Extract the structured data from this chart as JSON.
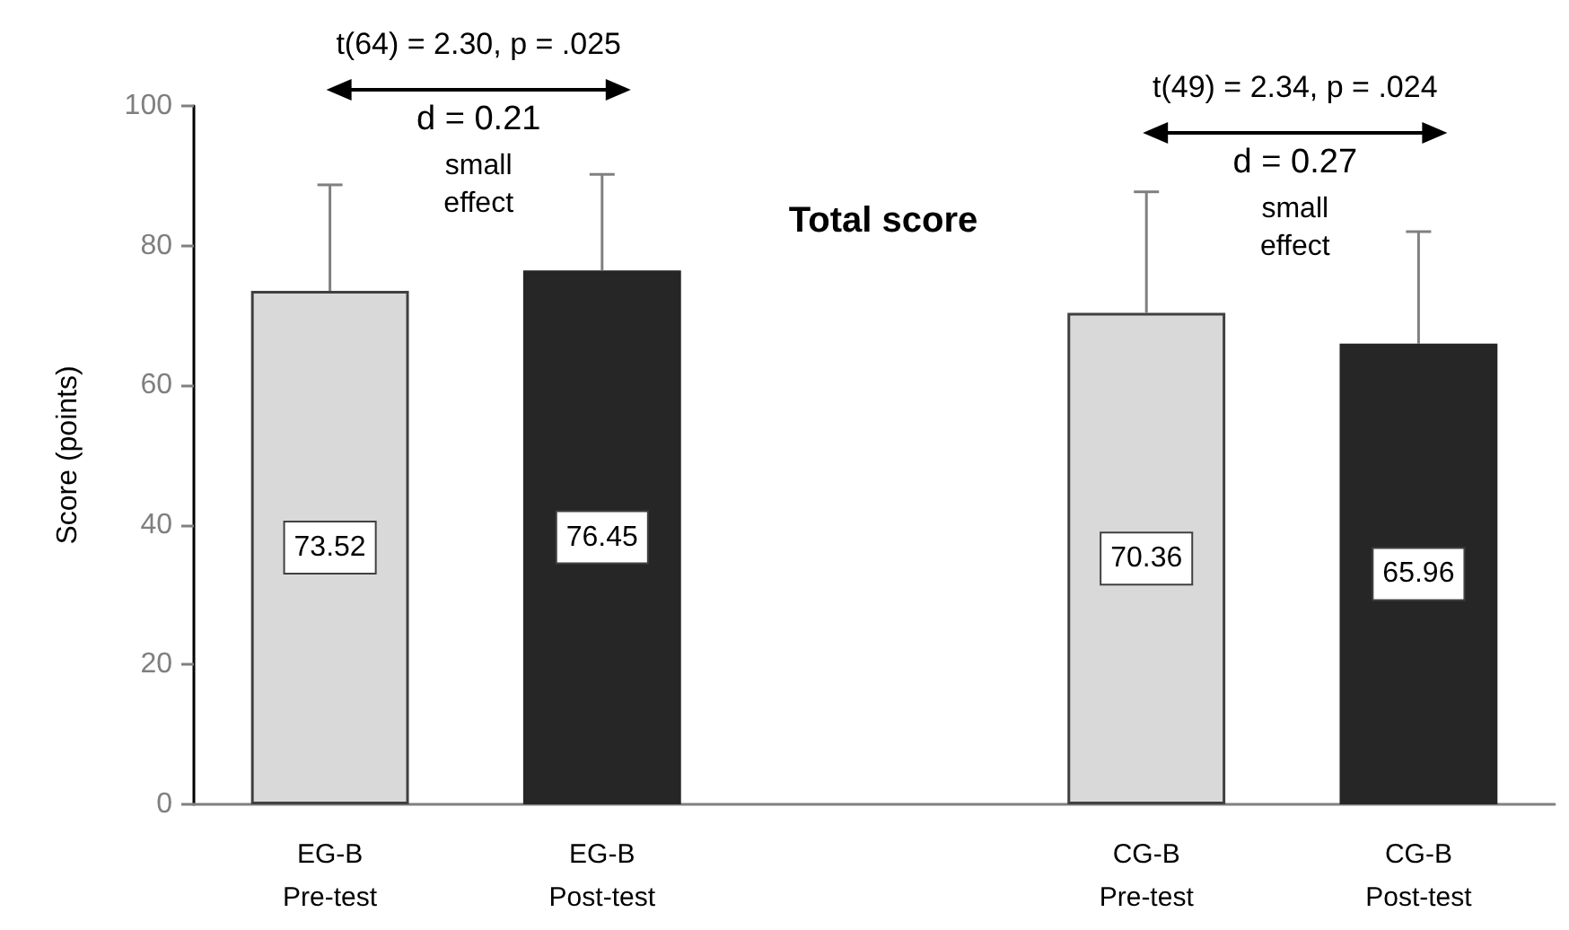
{
  "chart_data": {
    "type": "bar",
    "title": "Total score",
    "ylabel": "Score (points)",
    "categories": [
      "EG-B\nPre-test",
      "EG-B\nPost-test",
      null,
      "CG-B\nPre-test",
      "CG-B\nPost-test"
    ],
    "values": [
      73.52,
      76.45,
      null,
      70.36,
      65.96
    ],
    "colors": [
      "#d9d9d9",
      "#262626",
      null,
      "#d9d9d9",
      "#262626"
    ],
    "errors": [
      [
        73.52,
        88.7
      ],
      [
        76.45,
        90.2
      ],
      null,
      [
        70.36,
        87.7
      ],
      [
        65.96,
        82.0
      ]
    ],
    "data_labels": true,
    "ylim": [
      0,
      100
    ],
    "yticks": [
      0,
      20,
      40,
      60,
      80,
      100
    ],
    "annotations": [
      "t(64) = 2.30, p = .025",
      "d = 0.21\nsmall\neffect",
      "t(49) = 2.34, p = .024",
      "d = 0.27\nsmall\neffect"
    ]
  }
}
